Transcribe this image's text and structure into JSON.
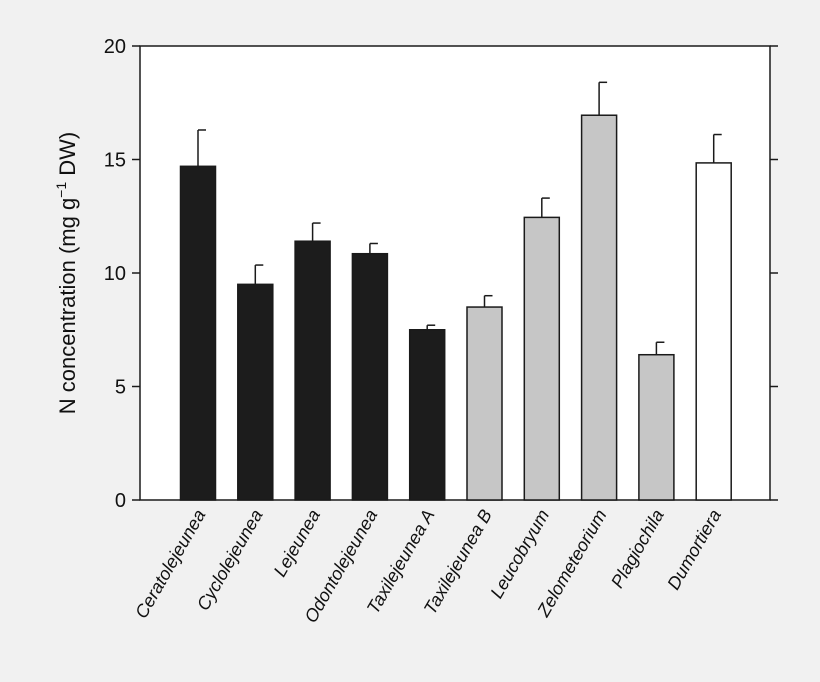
{
  "chart_data": {
    "type": "bar",
    "title": "",
    "xlabel": "",
    "ylabel": {
      "prefix": "N concentration (mg g",
      "sup": "−1",
      "suffix": " DW)"
    },
    "ylim": [
      0,
      20
    ],
    "yticks": [
      0,
      5,
      10,
      15,
      20
    ],
    "grid": false,
    "categories": [
      "Ceratolejeunea",
      "Cyclolejeunea",
      "Lejeunea",
      "Odontolejeunea",
      "Taxilejeunea A",
      "Taxilejeunea B",
      "Leucobryum",
      "Zelometeorium",
      "Plagiochila",
      "Dumortiera"
    ],
    "values": [
      14.7,
      9.5,
      11.4,
      10.85,
      7.5,
      8.5,
      12.45,
      16.95,
      6.4,
      14.85
    ],
    "errors": [
      1.6,
      0.85,
      0.8,
      0.45,
      0.2,
      0.5,
      0.85,
      1.45,
      0.55,
      1.25
    ],
    "bar_colors": [
      "#1c1c1c",
      "#1c1c1c",
      "#1c1c1c",
      "#1c1c1c",
      "#1c1c1c",
      "#c6c6c6",
      "#c6c6c6",
      "#c6c6c6",
      "#c6c6c6",
      "#ffffff"
    ]
  }
}
